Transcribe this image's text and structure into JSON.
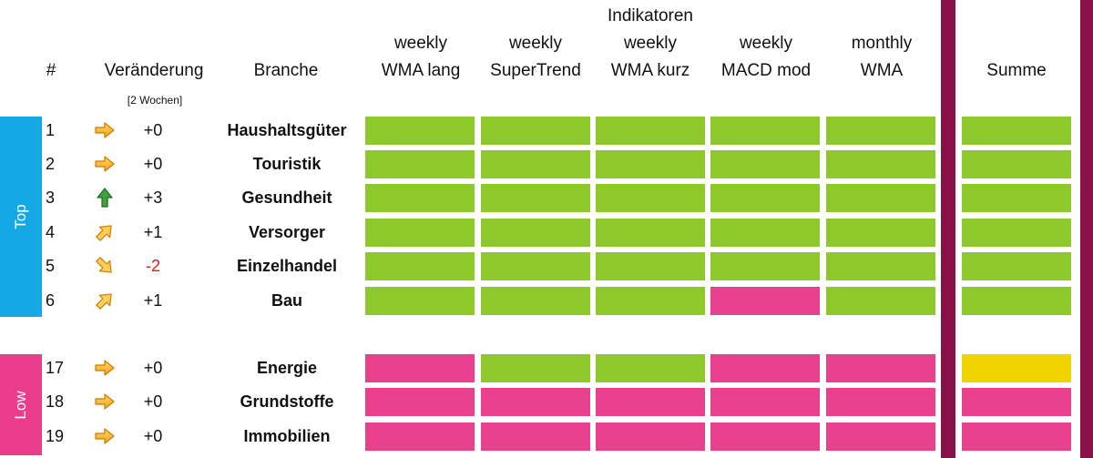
{
  "header": {
    "indikatoren": "Indikatoren",
    "rank": "#",
    "change": "Veränderung",
    "change_sub": "[2 Wochen]",
    "branche": "Branche",
    "columns": [
      {
        "line1": "weekly",
        "line2": "WMA lang"
      },
      {
        "line1": "weekly",
        "line2": "SuperTrend"
      },
      {
        "line1": "weekly",
        "line2": "WMA kurz"
      },
      {
        "line1": "weekly",
        "line2": "MACD mod"
      },
      {
        "line1": "monthly",
        "line2": "WMA"
      }
    ],
    "summe": "Summe"
  },
  "groups": {
    "top": "Top",
    "low": "Low"
  },
  "colors": {
    "green": "#8dc92b",
    "pink": "#e8408c",
    "yellow": "#f0d400",
    "top_band": "#14a8e4",
    "low_band": "#ec3c8c",
    "divider": "#8a1148"
  },
  "rows": [
    {
      "rank": "1",
      "trend": "arrow-right-icon",
      "delta": "+0",
      "branche": "Haushaltsgüter",
      "signals": [
        "green",
        "green",
        "green",
        "green",
        "green"
      ],
      "sum": "green"
    },
    {
      "rank": "2",
      "trend": "arrow-right-icon",
      "delta": "+0",
      "branche": "Touristik",
      "signals": [
        "green",
        "green",
        "green",
        "green",
        "green"
      ],
      "sum": "green"
    },
    {
      "rank": "3",
      "trend": "arrow-up-icon",
      "delta": "+3",
      "branche": "Gesundheit",
      "signals": [
        "green",
        "green",
        "green",
        "green",
        "green"
      ],
      "sum": "green"
    },
    {
      "rank": "4",
      "trend": "arrow-up-right-icon",
      "delta": "+1",
      "branche": "Versorger",
      "signals": [
        "green",
        "green",
        "green",
        "green",
        "green"
      ],
      "sum": "green"
    },
    {
      "rank": "5",
      "trend": "arrow-down-right-icon",
      "delta": "-2",
      "branche": "Einzelhandel",
      "signals": [
        "green",
        "green",
        "green",
        "green",
        "green"
      ],
      "sum": "green"
    },
    {
      "rank": "6",
      "trend": "arrow-up-right-icon",
      "delta": "+1",
      "branche": "Bau",
      "signals": [
        "green",
        "green",
        "green",
        "pink",
        "green"
      ],
      "sum": "green"
    },
    {
      "rank": "17",
      "trend": "arrow-right-icon",
      "delta": "+0",
      "branche": "Energie",
      "signals": [
        "pink",
        "green",
        "green",
        "pink",
        "pink"
      ],
      "sum": "yellow"
    },
    {
      "rank": "18",
      "trend": "arrow-right-icon",
      "delta": "+0",
      "branche": "Grundstoffe",
      "signals": [
        "pink",
        "pink",
        "pink",
        "pink",
        "pink"
      ],
      "sum": "pink"
    },
    {
      "rank": "19",
      "trend": "arrow-right-icon",
      "delta": "+0",
      "branche": "Immobilien",
      "signals": [
        "pink",
        "pink",
        "pink",
        "pink",
        "pink"
      ],
      "sum": "pink"
    }
  ]
}
